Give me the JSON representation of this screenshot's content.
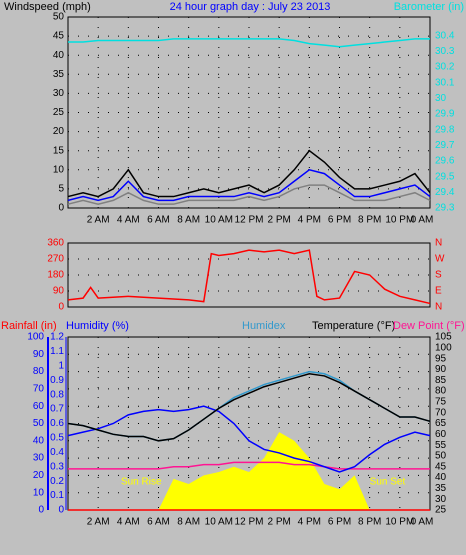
{
  "chart_data": [
    {
      "type": "line",
      "title": "24 hour graph day : July 23 2013",
      "y_label": "Windspeed (mph)",
      "y2_label": "Barometer (in)",
      "x": [
        0,
        1,
        2,
        3,
        4,
        5,
        6,
        7,
        8,
        9,
        10,
        11,
        12,
        13,
        14,
        15,
        16,
        17,
        18,
        19,
        20,
        21,
        22,
        23,
        24
      ],
      "xlim": [
        0,
        24
      ],
      "xticks": [
        {
          "value": 2,
          "label": "2 AM"
        },
        {
          "value": 4,
          "label": "4 AM"
        },
        {
          "value": 6,
          "label": "6 AM"
        },
        {
          "value": 8,
          "label": "8 AM"
        },
        {
          "value": 10,
          "label": "10 AM"
        },
        {
          "value": 12,
          "label": "12 PM"
        },
        {
          "value": 14,
          "label": "2 PM"
        },
        {
          "value": 16,
          "label": "4 PM"
        },
        {
          "value": 18,
          "label": "6 PM"
        },
        {
          "value": 20,
          "label": "8 PM"
        },
        {
          "value": 22,
          "label": "10 PM"
        },
        {
          "value": 24,
          "label": "0 AM"
        }
      ],
      "ylim": [
        0,
        50
      ],
      "yticks": [
        0,
        5,
        10,
        15,
        20,
        25,
        30,
        35,
        40,
        45,
        50
      ],
      "y2lim": [
        29.3,
        30.52
      ],
      "y2ticks": [
        29.3,
        29.4,
        29.5,
        29.6,
        29.7,
        29.8,
        29.9,
        30,
        30.1,
        30.2,
        30.3,
        30.4
      ],
      "grid": true,
      "series": [
        {
          "color": "#000000",
          "axis": "y",
          "values": [
            3,
            4,
            3,
            5,
            10,
            4,
            3,
            3,
            4,
            5,
            4,
            5,
            6,
            4,
            6,
            10,
            15,
            12,
            8,
            5,
            5,
            6,
            7,
            9,
            4
          ]
        },
        {
          "color": "#808080",
          "axis": "y",
          "values": [
            1,
            2,
            1,
            2,
            4,
            2,
            1,
            1,
            2,
            2,
            2,
            2,
            3,
            2,
            3,
            5,
            6,
            6,
            4,
            2,
            2,
            2,
            3,
            4,
            2
          ]
        },
        {
          "color": "#0000ff",
          "axis": "y",
          "values": [
            2,
            3,
            2,
            3,
            7,
            3,
            2,
            2,
            3,
            3,
            3,
            3,
            4,
            3,
            4,
            7,
            10,
            9,
            6,
            3,
            3,
            4,
            5,
            6,
            3
          ]
        },
        {
          "color": "#00e0e0",
          "axis": "y2",
          "values": [
            30.36,
            30.36,
            30.37,
            30.37,
            30.37,
            30.37,
            30.37,
            30.38,
            30.38,
            30.38,
            30.38,
            30.38,
            30.38,
            30.38,
            30.38,
            30.37,
            30.35,
            30.34,
            30.33,
            30.34,
            30.35,
            30.36,
            30.37,
            30.38,
            30.38
          ]
        }
      ]
    },
    {
      "type": "line",
      "x": [
        0,
        1,
        1.5,
        2,
        4,
        6,
        8,
        9,
        9.5,
        10,
        11,
        12,
        13,
        14,
        15,
        16,
        16.5,
        17,
        18,
        19,
        20,
        21,
        22,
        23,
        24
      ],
      "xlim": [
        0,
        24
      ],
      "ylim": [
        0,
        360
      ],
      "yticks": [
        0,
        90,
        180,
        270,
        360
      ],
      "y2ticks": [
        {
          "value": 0,
          "label": "N"
        },
        {
          "value": 90,
          "label": "E"
        },
        {
          "value": 180,
          "label": "S"
        },
        {
          "value": 270,
          "label": "W"
        },
        {
          "value": 360,
          "label": "N"
        }
      ],
      "grid": true,
      "series": [
        {
          "color": "#ff0000",
          "axis": "y",
          "values": [
            40,
            50,
            110,
            50,
            60,
            50,
            40,
            30,
            300,
            290,
            300,
            320,
            310,
            320,
            300,
            320,
            60,
            40,
            50,
            200,
            180,
            100,
            60,
            40,
            20
          ]
        }
      ]
    },
    {
      "type": "line",
      "y_label": "Humidity (%)",
      "y3_label": "Rainfall (in)",
      "y2_label": "Temperature (°F)",
      "labels": [
        "Humidex",
        "Dew Point (°F)"
      ],
      "annotations": [
        "Sun Rise",
        "Sun Set"
      ],
      "annotation_x": [
        6.2,
        20
      ],
      "x": [
        0,
        1,
        2,
        3,
        4,
        5,
        6,
        7,
        8,
        9,
        10,
        11,
        12,
        13,
        14,
        15,
        16,
        17,
        18,
        19,
        20,
        21,
        22,
        23,
        24
      ],
      "xlim": [
        0,
        24
      ],
      "xticks": [
        {
          "value": 2,
          "label": "2 AM"
        },
        {
          "value": 4,
          "label": "4 AM"
        },
        {
          "value": 6,
          "label": "6 AM"
        },
        {
          "value": 8,
          "label": "8 AM"
        },
        {
          "value": 10,
          "label": "10 AM"
        },
        {
          "value": 12,
          "label": "12 PM"
        },
        {
          "value": 14,
          "label": "2 PM"
        },
        {
          "value": 16,
          "label": "4 PM"
        },
        {
          "value": 18,
          "label": "6 PM"
        },
        {
          "value": 20,
          "label": "8 PM"
        },
        {
          "value": 22,
          "label": "10 PM"
        },
        {
          "value": 24,
          "label": "0 AM"
        }
      ],
      "ylim": [
        0,
        100
      ],
      "yticks": [
        0,
        10,
        20,
        30,
        40,
        50,
        60,
        70,
        80,
        90,
        100
      ],
      "y3lim": [
        0,
        1.2
      ],
      "y3ticks": [
        0,
        0.1,
        0.2,
        0.3,
        0.4,
        0.5,
        0.6,
        0.7,
        0.8,
        0.9,
        1,
        1.1,
        1.2
      ],
      "y2lim": [
        25,
        105
      ],
      "y2ticks": [
        25,
        30,
        35,
        40,
        45,
        50,
        55,
        60,
        65,
        70,
        75,
        80,
        85,
        90,
        95,
        100,
        105
      ],
      "grid": true,
      "series": [
        {
          "color": "#ffff00",
          "axis": "y",
          "style": "area",
          "values": [
            0,
            0,
            0,
            0,
            0,
            0,
            0,
            18,
            15,
            20,
            22,
            25,
            22,
            30,
            45,
            40,
            30,
            15,
            12,
            20,
            0,
            0,
            0,
            0,
            0
          ]
        },
        {
          "color": "#ff0000",
          "axis": "y3",
          "values": [
            0,
            0,
            0,
            0,
            0,
            0,
            0,
            0,
            0,
            0,
            0,
            0,
            0,
            0,
            0,
            0,
            0,
            0,
            0,
            0,
            0,
            0,
            0,
            0,
            0
          ]
        },
        {
          "color": "#ff1493",
          "axis": "y2",
          "values": [
            44,
            44,
            44,
            44,
            44,
            44,
            44,
            45,
            45,
            46,
            46,
            47,
            47,
            47,
            47,
            46,
            46,
            45,
            44,
            44,
            44,
            44,
            44,
            44,
            44
          ]
        },
        {
          "color": "#0000ff",
          "axis": "y",
          "values": [
            43,
            45,
            47,
            50,
            55,
            57,
            58,
            57,
            58,
            60,
            57,
            50,
            40,
            35,
            33,
            30,
            28,
            25,
            22,
            25,
            32,
            38,
            42,
            45,
            43
          ]
        },
        {
          "color": "#3399cc",
          "axis": "y2",
          "values": [
            65,
            64,
            62,
            60,
            59,
            59,
            57,
            58,
            62,
            67,
            72,
            77,
            80,
            83,
            85,
            87,
            89,
            88,
            85,
            80,
            76,
            72,
            68,
            68,
            66
          ]
        },
        {
          "color": "#000000",
          "axis": "y2",
          "values": [
            65,
            64,
            62,
            60,
            59,
            59,
            57,
            58,
            62,
            67,
            72,
            76,
            79,
            82,
            84,
            86,
            88,
            87,
            84,
            80,
            76,
            72,
            68,
            68,
            66
          ]
        }
      ]
    }
  ]
}
